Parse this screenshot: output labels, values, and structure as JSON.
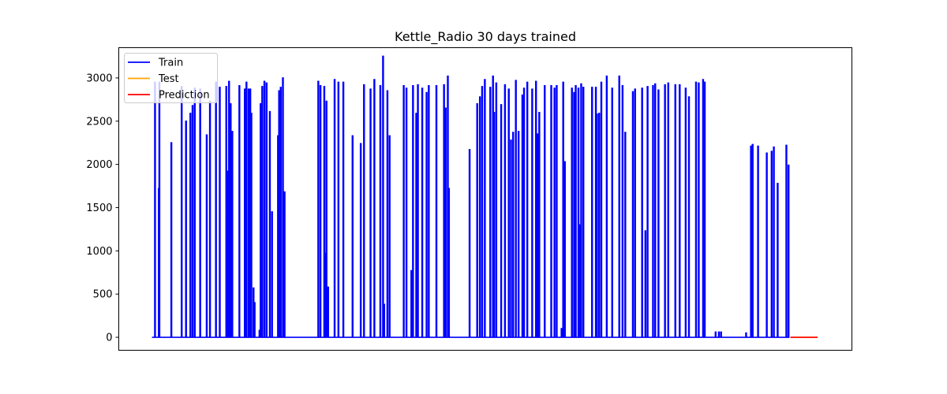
{
  "chart_data": {
    "type": "line",
    "title": "Kettle_Radio 30 days trained",
    "xlabel": "",
    "ylabel": "",
    "x_ticks_visible": false,
    "ylim": [
      -150,
      3350
    ],
    "yticks": [
      0,
      500,
      1000,
      1500,
      2000,
      2500,
      3000
    ],
    "legend_position": "top-left",
    "series": [
      {
        "name": "Train",
        "color": "#0000ff",
        "spikes": [
          [
            0.5,
            2950
          ],
          [
            1.2,
            1720
          ],
          [
            1.3,
            2950
          ],
          [
            3.5,
            2250
          ],
          [
            5.4,
            2900
          ],
          [
            6.2,
            2500
          ],
          [
            7.0,
            2590
          ],
          [
            7.4,
            2680
          ],
          [
            7.8,
            2880
          ],
          [
            8.8,
            2870
          ],
          [
            10.0,
            2340
          ],
          [
            10.6,
            2730
          ],
          [
            11.7,
            2950
          ],
          [
            12.4,
            2890
          ],
          [
            13.6,
            2900
          ],
          [
            13.9,
            1920
          ],
          [
            14.1,
            2960
          ],
          [
            14.4,
            2700
          ],
          [
            14.7,
            2380
          ],
          [
            16.0,
            2910
          ],
          [
            17.0,
            2870
          ],
          [
            17.3,
            2950
          ],
          [
            17.7,
            2870
          ],
          [
            18.0,
            2870
          ],
          [
            18.2,
            2590
          ],
          [
            18.6,
            570
          ],
          [
            18.8,
            400
          ],
          [
            19.7,
            80
          ],
          [
            19.9,
            2700
          ],
          [
            20.2,
            2900
          ],
          [
            20.6,
            2960
          ],
          [
            21.0,
            2940
          ],
          [
            21.6,
            2610
          ],
          [
            22.0,
            1450
          ],
          [
            23.1,
            2330
          ],
          [
            23.3,
            2850
          ],
          [
            23.6,
            2890
          ],
          [
            24.0,
            3000
          ],
          [
            24.3,
            1680
          ],
          [
            30.5,
            2960
          ],
          [
            30.9,
            2910
          ],
          [
            31.6,
            2900
          ],
          [
            31.8,
            970
          ],
          [
            32.0,
            2730
          ],
          [
            32.3,
            580
          ],
          [
            33.5,
            2980
          ],
          [
            34.2,
            2950
          ],
          [
            35.1,
            2950
          ],
          [
            36.8,
            2330
          ],
          [
            38.3,
            2240
          ],
          [
            38.9,
            2920
          ],
          [
            40.1,
            2870
          ],
          [
            40.8,
            2980
          ],
          [
            41.9,
            2910
          ],
          [
            42.4,
            3250
          ],
          [
            42.6,
            380
          ],
          [
            43.2,
            2850
          ],
          [
            43.6,
            2330
          ],
          [
            46.2,
            2910
          ],
          [
            46.7,
            2880
          ],
          [
            47.6,
            770
          ],
          [
            47.9,
            2910
          ],
          [
            48.5,
            2590
          ],
          [
            48.8,
            2920
          ],
          [
            49.6,
            2880
          ],
          [
            50.4,
            2830
          ],
          [
            50.8,
            2910
          ],
          [
            52.2,
            2910
          ],
          [
            53.6,
            2920
          ],
          [
            53.9,
            2650
          ],
          [
            54.3,
            3020
          ],
          [
            54.5,
            1720
          ],
          [
            58.3,
            2170
          ],
          [
            59.7,
            2700
          ],
          [
            60.2,
            2780
          ],
          [
            60.6,
            2900
          ],
          [
            61.1,
            2980
          ],
          [
            62.1,
            2890
          ],
          [
            62.6,
            3020
          ],
          [
            62.8,
            2600
          ],
          [
            63.2,
            2940
          ],
          [
            64.1,
            2690
          ],
          [
            64.8,
            2920
          ],
          [
            65.5,
            2870
          ],
          [
            65.9,
            2280
          ],
          [
            66.3,
            2370
          ],
          [
            66.8,
            2970
          ],
          [
            67.3,
            2380
          ],
          [
            68.0,
            2800
          ],
          [
            68.3,
            2880
          ],
          [
            68.9,
            2950
          ],
          [
            69.8,
            2870
          ],
          [
            70.5,
            2960
          ],
          [
            70.8,
            2350
          ],
          [
            71.1,
            2600
          ],
          [
            72.1,
            2910
          ],
          [
            73.3,
            2910
          ],
          [
            73.9,
            2880
          ],
          [
            74.3,
            2910
          ],
          [
            75.2,
            100
          ],
          [
            75.5,
            2950
          ],
          [
            75.8,
            2030
          ],
          [
            77.1,
            2880
          ],
          [
            77.5,
            2830
          ],
          [
            77.8,
            2910
          ],
          [
            78.3,
            2880
          ],
          [
            78.5,
            1300
          ],
          [
            78.8,
            2930
          ],
          [
            79.2,
            2890
          ],
          [
            80.8,
            2890
          ],
          [
            81.5,
            2890
          ],
          [
            81.7,
            2580
          ],
          [
            82.1,
            2590
          ],
          [
            82.5,
            2950
          ],
          [
            83.5,
            3020
          ],
          [
            84.5,
            2880
          ],
          [
            85.8,
            3020
          ],
          [
            86.4,
            2910
          ],
          [
            86.9,
            2370
          ],
          [
            88.3,
            2840
          ],
          [
            88.7,
            2870
          ],
          [
            90.0,
            2880
          ],
          [
            90.6,
            1230
          ],
          [
            91.0,
            2900
          ],
          [
            92.0,
            2910
          ],
          [
            92.4,
            2930
          ],
          [
            93.0,
            2860
          ],
          [
            94.2,
            2920
          ],
          [
            94.8,
            2940
          ],
          [
            96.1,
            2920
          ],
          [
            96.9,
            2920
          ],
          [
            98.0,
            2880
          ],
          [
            98.6,
            2780
          ],
          [
            99.9,
            2950
          ],
          [
            100.4,
            2940
          ],
          [
            101.2,
            2980
          ],
          [
            101.5,
            2950
          ],
          [
            103.5,
            60
          ],
          [
            104.1,
            60
          ],
          [
            104.5,
            60
          ],
          [
            109.1,
            50
          ],
          [
            110.0,
            2210
          ],
          [
            110.3,
            2230
          ],
          [
            111.3,
            2210
          ],
          [
            112.9,
            2130
          ],
          [
            113.8,
            2150
          ],
          [
            114.2,
            2200
          ],
          [
            114.9,
            1780
          ],
          [
            116.5,
            2220
          ],
          [
            116.9,
            1990
          ]
        ],
        "x_range": [
          0,
          117
        ]
      },
      {
        "name": "Test",
        "color": "#ffa500",
        "flat_value": 0,
        "x_range": [
          117.3,
          122.3
        ]
      },
      {
        "name": "Prediction",
        "color": "#ff0000",
        "flat_value": 0,
        "x_range": [
          117.3,
          122.3
        ]
      }
    ],
    "xlim": [
      -6.1,
      128.6
    ]
  }
}
